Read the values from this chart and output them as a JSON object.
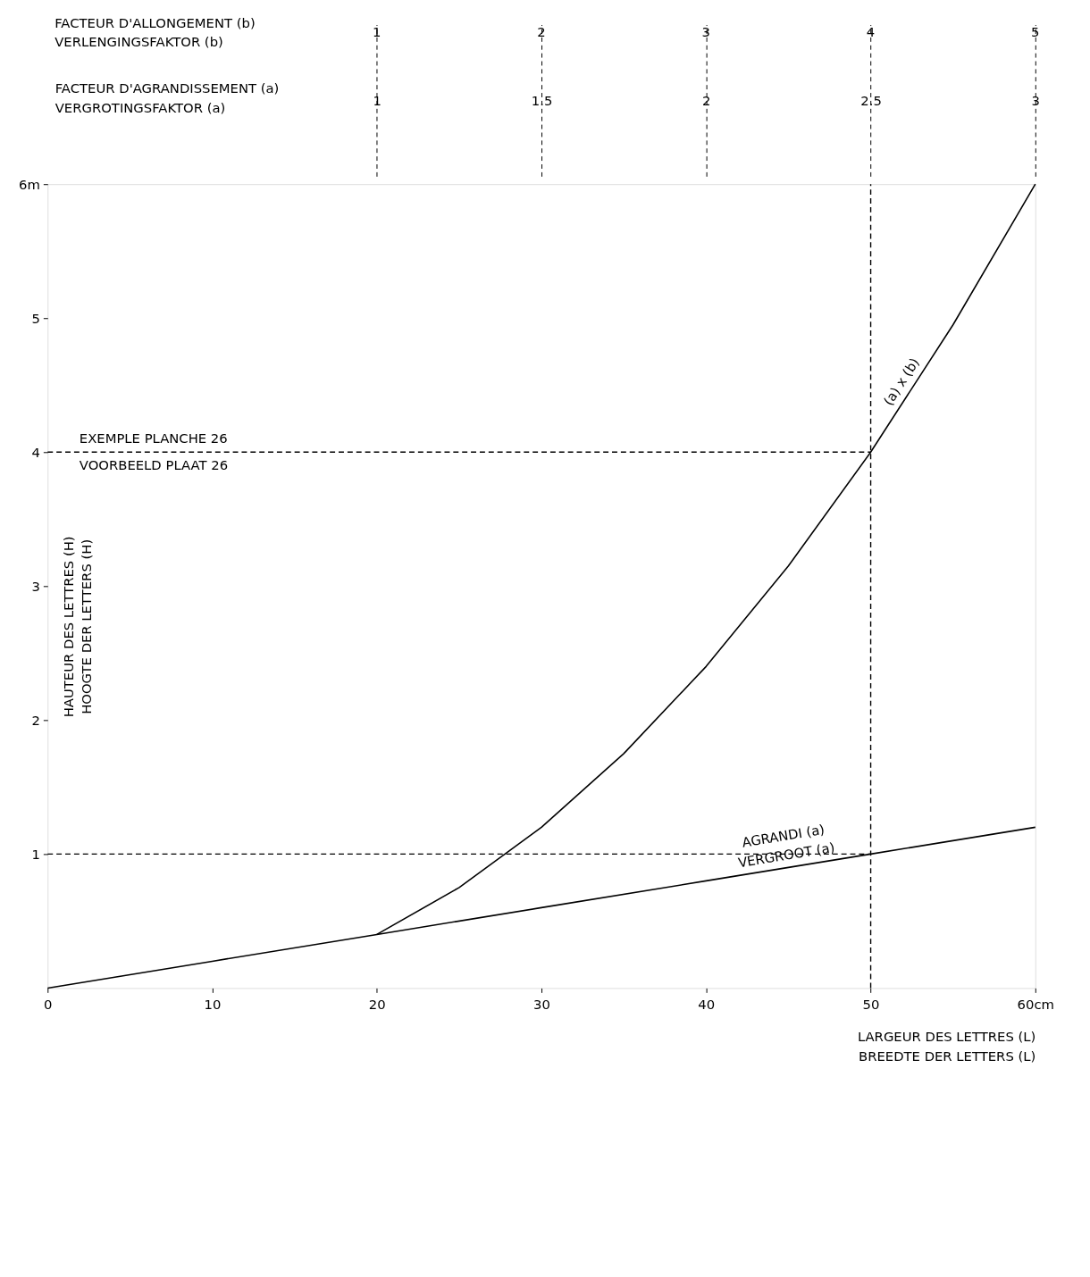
{
  "chart_data": {
    "type": "line",
    "xlabel": "LARGEUR DES LETTRES (L)\nBREEDTE DER LETTERS (L)",
    "ylabel": "HAUTEUR DES LETTRES (H)\nHOOGTE DER LETTERS (H)",
    "x2label": "FACTEUR D'AGRANDISSEMENT (a)\nVERGROTINGSFAKTOR (a)",
    "xlim": [
      0,
      60
    ],
    "xticks": [
      0,
      10,
      20,
      30,
      40,
      50,
      {
        "value": 60,
        "label": "60cm"
      }
    ],
    "ylim": [
      0,
      6
    ],
    "yticks": [
      1,
      2,
      3,
      4,
      5,
      {
        "value": 6,
        "label": "6m"
      }
    ],
    "x2lim": [
      0,
      3
    ],
    "x2ticks": [
      1,
      1.5,
      2,
      2.5,
      3
    ],
    "annotations": [
      "FACTEUR D'ALLONGEMENT (b)\nVERLENGINGSFAKTOR (b)",
      "1",
      "2",
      "3",
      "4",
      "5"
    ],
    "grid": false,
    "series": [
      {
        "name": "(a) x (b)",
        "color": "#000000",
        "x": [
          20,
          25,
          30,
          35,
          40,
          45,
          50,
          55,
          60
        ],
        "values": [
          0.4,
          0.75,
          1.2,
          1.75,
          2.4,
          3.15,
          4,
          4.95,
          6
        ]
      },
      {
        "name": "AGRANDI (a)\nVERGROOT (a)",
        "color": "#000000",
        "x": [
          0,
          10,
          20,
          30,
          40,
          50,
          60
        ],
        "values": [
          0,
          0.2,
          0.4,
          0.6,
          0.8,
          1,
          1.2
        ]
      }
    ],
    "ref_lines": [
      {
        "axis": "x",
        "value": 50,
        "line_style": "dashed"
      },
      {
        "axis": "y",
        "value": 4,
        "label": "EXEMPLE PLANCHE 26\nVOORBEELD PLAAT 26",
        "line_style": "dashed"
      },
      {
        "axis": "y",
        "value": 1,
        "line_style": "dashed"
      }
    ]
  }
}
